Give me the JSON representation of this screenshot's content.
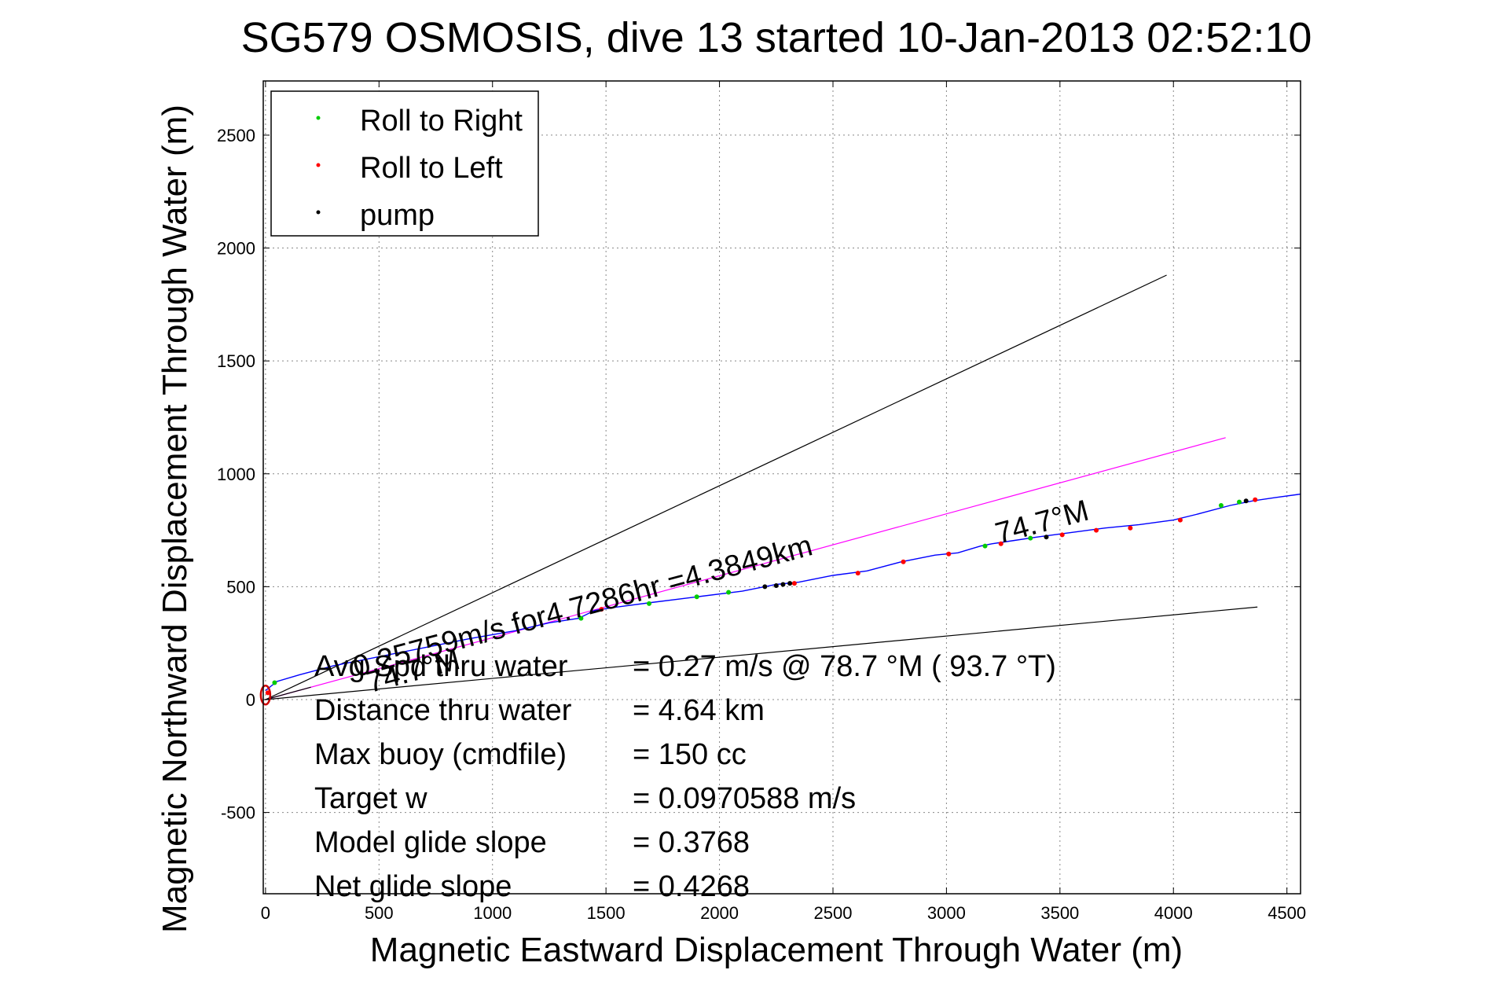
{
  "chart_data": {
    "type": "line",
    "title": "SG579 OSMOSIS, dive 13 started 10-Jan-2013 02:52:10",
    "xlabel": "Magnetic Eastward Displacement Through Water (m)",
    "ylabel": "Magnetic Northward Displacement Through Water (m)",
    "xlim": [
      -10,
      4560
    ],
    "ylim": [
      -860,
      2740
    ],
    "xticks": [
      0,
      500,
      1000,
      1500,
      2000,
      2500,
      3000,
      3500,
      4000,
      4500
    ],
    "yticks": [
      -500,
      0,
      500,
      1000,
      1500,
      2000,
      2500
    ],
    "grid": true,
    "legend_placement": "top-left",
    "legend": [
      {
        "label": "Roll to Right",
        "color": "#00cc00"
      },
      {
        "label": "Roll to Left",
        "color": "#ff0000"
      },
      {
        "label": "pump",
        "color": "#000000"
      }
    ],
    "track": {
      "color": "#0000ff",
      "x": [
        0,
        50,
        150,
        300,
        500,
        700,
        900,
        1100,
        1250,
        1380,
        1450,
        1550,
        1700,
        1900,
        2100,
        2250,
        2350,
        2500,
        2650,
        2800,
        2950,
        3050,
        3150,
        3200,
        3300,
        3400,
        3550,
        3700,
        3850,
        4000,
        4100,
        4250,
        4350,
        4450,
        4560
      ],
      "y": [
        40,
        80,
        110,
        150,
        190,
        230,
        270,
        305,
        340,
        360,
        395,
        410,
        430,
        455,
        480,
        510,
        520,
        550,
        570,
        610,
        640,
        650,
        680,
        690,
        705,
        720,
        740,
        760,
        775,
        795,
        820,
        860,
        880,
        895,
        910
      ]
    },
    "roll_right_points": {
      "x": [
        40,
        1390,
        1690,
        1900,
        2040,
        3170,
        3370,
        4210,
        4290
      ],
      "y": [
        75,
        360,
        425,
        455,
        475,
        680,
        715,
        860,
        875
      ]
    },
    "roll_left_points": {
      "x": [
        10,
        1480,
        2330,
        2610,
        2810,
        3010,
        3240,
        3510,
        3660,
        3810,
        4030,
        4360
      ],
      "y": [
        30,
        400,
        515,
        560,
        610,
        645,
        690,
        730,
        750,
        760,
        795,
        885
      ]
    },
    "pump_points": {
      "x": [
        2200,
        2250,
        2280,
        2310,
        3440,
        4320
      ],
      "y": [
        500,
        505,
        510,
        515,
        720,
        880
      ]
    },
    "reference_lines": [
      {
        "color": "#000000",
        "x": [
          0,
          3970
        ],
        "y": [
          0,
          1880
        ]
      },
      {
        "color": "#ff00ff",
        "x": [
          0,
          4230
        ],
        "y": [
          0,
          1160
        ]
      },
      {
        "color": "#000000",
        "x": [
          0,
          4370
        ],
        "y": [
          0,
          410
        ]
      },
      {
        "color": "#000000",
        "x": [
          0,
          200
        ],
        "y": [
          0,
          55
        ]
      }
    ],
    "annotations": [
      {
        "text": "74.7°M",
        "x": 3230,
        "y": 690,
        "angle": -15
      },
      {
        "text": "0.25759m/s for4.7286hr =4.3849km",
        "x": 400,
        "y": 100,
        "angle": -15
      },
      {
        "text": "74.7°M",
        "x": 460,
        "y": 30,
        "angle": -15
      }
    ],
    "stats": [
      {
        "label": "Avg Spd thru water",
        "value": "=  0.27 m/s @  78.7 °M ( 93.7 °T)"
      },
      {
        "label": "Distance thru water",
        "value": "=  4.64 km"
      },
      {
        "label": "Max buoy (cmdfile)",
        "value": "= 150 cc"
      },
      {
        "label": "Target w",
        "value": "= 0.0970588 m/s"
      },
      {
        "label": "Model glide slope",
        "value": "= 0.3768"
      },
      {
        "label": "Net glide slope",
        "value": "= 0.4268"
      }
    ]
  }
}
